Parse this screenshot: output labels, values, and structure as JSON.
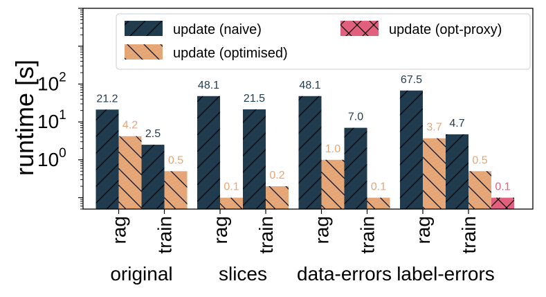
{
  "chart_data": {
    "type": "bar",
    "title": "",
    "ylabel": "runtime [s]",
    "yscale": "log",
    "ylim": [
      0.05,
      10000
    ],
    "yticks": [
      {
        "value": 1,
        "base": "10",
        "exp": "0"
      },
      {
        "value": 10,
        "base": "10",
        "exp": "1"
      },
      {
        "value": 100,
        "base": "10",
        "exp": "2"
      }
    ],
    "grid": false,
    "legend_position": "top",
    "groups": [
      {
        "label": "original",
        "categories": [
          "rag",
          "train"
        ]
      },
      {
        "label": "slices",
        "categories": [
          "rag",
          "train"
        ]
      },
      {
        "label": "data-errors",
        "categories": [
          "rag",
          "train"
        ]
      },
      {
        "label": "label-errors",
        "categories": [
          "rag",
          "train"
        ]
      }
    ],
    "series": [
      {
        "name": "update (naive)",
        "color": "#1f3b4d",
        "hatch": "/",
        "values": [
          21.2,
          2.5,
          48.1,
          21.5,
          48.1,
          7.0,
          67.5,
          4.7
        ],
        "labels": [
          "21.2",
          "2.5",
          "48.1",
          "21.5",
          "48.1",
          "7.0",
          "67.5",
          "4.7"
        ]
      },
      {
        "name": "update (optimised)",
        "color": "#e5a677",
        "hatch": "\\",
        "values": [
          4.2,
          0.5,
          0.1,
          0.2,
          1.0,
          0.1,
          3.7,
          0.5
        ],
        "labels": [
          "4.2",
          "0.5",
          "0.1",
          "0.2",
          "1.0",
          "0.1",
          "3.7",
          "0.5"
        ]
      },
      {
        "name": "update (opt-proxy)",
        "color": "#e0607e",
        "hatch": "x",
        "values": [
          null,
          null,
          null,
          null,
          null,
          null,
          null,
          0.1
        ],
        "labels": [
          null,
          null,
          null,
          null,
          null,
          null,
          null,
          "0.1"
        ]
      }
    ]
  }
}
